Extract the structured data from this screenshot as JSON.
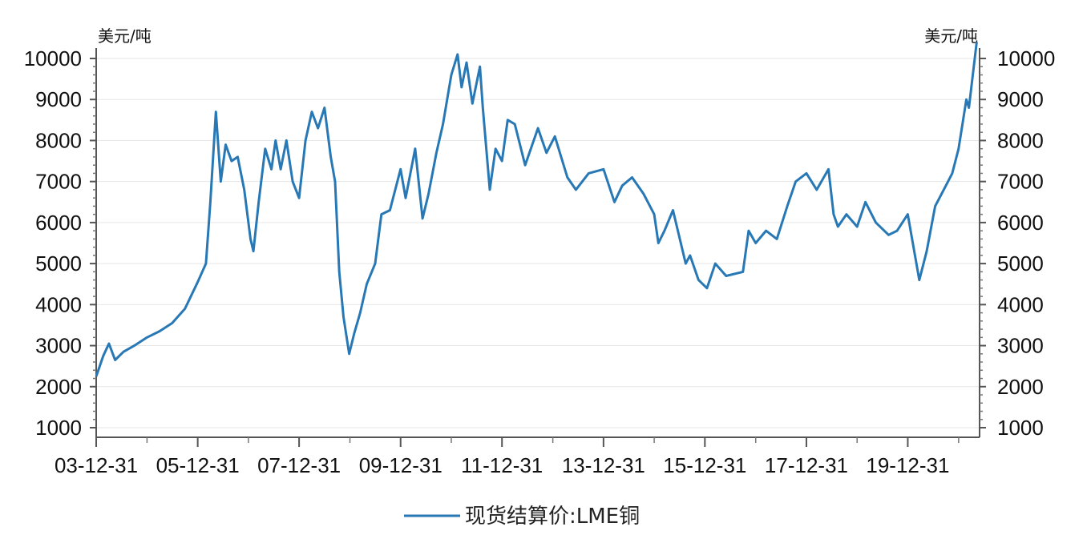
{
  "chart_data": {
    "type": "line",
    "title": "",
    "ylabel_left": "美元/吨",
    "ylabel_right": "美元/吨",
    "ylim": [
      1000,
      10000
    ],
    "yticks": [
      1000,
      2000,
      3000,
      4000,
      5000,
      6000,
      7000,
      8000,
      9000,
      10000
    ],
    "ytick_labels": [
      "1000",
      "2000",
      "3000",
      "4000",
      "5000",
      "6000",
      "7000",
      "8000",
      "9000",
      "10000"
    ],
    "xlim": [
      "2003-12-31",
      "2021-05-31"
    ],
    "xticks": [
      "2003-12-31",
      "2005-12-31",
      "2007-12-31",
      "2009-12-31",
      "2011-12-31",
      "2013-12-31",
      "2015-12-31",
      "2017-12-31",
      "2019-12-31"
    ],
    "xtick_labels": [
      "03-12-31",
      "05-12-31",
      "07-12-31",
      "09-12-31",
      "11-12-31",
      "13-12-31",
      "15-12-31",
      "17-12-31",
      "19-12-31"
    ],
    "grid": true,
    "legend_position": "bottom",
    "series": [
      {
        "name": "现货结算价:LME铜",
        "color": "#2878b5",
        "points": [
          [
            "2003-12-31",
            2250
          ],
          [
            "2004-02-20",
            2750
          ],
          [
            "2004-04-01",
            3050
          ],
          [
            "2004-05-15",
            2650
          ],
          [
            "2004-07-15",
            2850
          ],
          [
            "2004-09-30",
            3000
          ],
          [
            "2004-12-31",
            3200
          ],
          [
            "2005-03-31",
            3350
          ],
          [
            "2005-06-30",
            3550
          ],
          [
            "2005-09-30",
            3900
          ],
          [
            "2005-12-31",
            4550
          ],
          [
            "2006-02-28",
            5000
          ],
          [
            "2006-04-01",
            6500
          ],
          [
            "2006-05-11",
            8700
          ],
          [
            "2006-06-15",
            7000
          ],
          [
            "2006-07-20",
            7900
          ],
          [
            "2006-09-01",
            7500
          ],
          [
            "2006-10-15",
            7600
          ],
          [
            "2006-12-01",
            6800
          ],
          [
            "2007-01-15",
            5600
          ],
          [
            "2007-02-05",
            5300
          ],
          [
            "2007-03-15",
            6500
          ],
          [
            "2007-05-01",
            7800
          ],
          [
            "2007-06-15",
            7300
          ],
          [
            "2007-07-15",
            8000
          ],
          [
            "2007-08-20",
            7300
          ],
          [
            "2007-10-01",
            8000
          ],
          [
            "2007-11-15",
            7000
          ],
          [
            "2007-12-31",
            6600
          ],
          [
            "2008-02-15",
            8000
          ],
          [
            "2008-04-01",
            8700
          ],
          [
            "2008-05-15",
            8300
          ],
          [
            "2008-07-01",
            8800
          ],
          [
            "2008-08-15",
            7600
          ],
          [
            "2008-09-15",
            7000
          ],
          [
            "2008-10-15",
            4800
          ],
          [
            "2008-11-15",
            3700
          ],
          [
            "2008-12-26",
            2800
          ],
          [
            "2009-01-31",
            3300
          ],
          [
            "2009-03-15",
            3800
          ],
          [
            "2009-05-01",
            4500
          ],
          [
            "2009-07-01",
            5000
          ],
          [
            "2009-08-15",
            6200
          ],
          [
            "2009-10-15",
            6300
          ],
          [
            "2009-12-31",
            7300
          ],
          [
            "2010-02-05",
            6600
          ],
          [
            "2010-04-15",
            7800
          ],
          [
            "2010-06-07",
            6100
          ],
          [
            "2010-07-20",
            6700
          ],
          [
            "2010-09-15",
            7700
          ],
          [
            "2010-11-01",
            8400
          ],
          [
            "2010-12-31",
            9600
          ],
          [
            "2011-02-14",
            10100
          ],
          [
            "2011-03-15",
            9300
          ],
          [
            "2011-04-20",
            9900
          ],
          [
            "2011-06-01",
            8900
          ],
          [
            "2011-07-25",
            9800
          ],
          [
            "2011-08-15",
            8800
          ],
          [
            "2011-10-04",
            6800
          ],
          [
            "2011-11-15",
            7800
          ],
          [
            "2011-12-31",
            7500
          ],
          [
            "2012-02-10",
            8500
          ],
          [
            "2012-04-01",
            8400
          ],
          [
            "2012-06-15",
            7400
          ],
          [
            "2012-09-15",
            8300
          ],
          [
            "2012-11-15",
            7700
          ],
          [
            "2013-01-15",
            8100
          ],
          [
            "2013-04-15",
            7100
          ],
          [
            "2013-06-15",
            6800
          ],
          [
            "2013-09-15",
            7200
          ],
          [
            "2013-12-31",
            7300
          ],
          [
            "2014-03-20",
            6500
          ],
          [
            "2014-05-15",
            6900
          ],
          [
            "2014-07-25",
            7100
          ],
          [
            "2014-10-15",
            6700
          ],
          [
            "2014-12-31",
            6200
          ],
          [
            "2015-01-30",
            5500
          ],
          [
            "2015-03-15",
            5800
          ],
          [
            "2015-05-15",
            6300
          ],
          [
            "2015-08-15",
            5000
          ],
          [
            "2015-09-15",
            5200
          ],
          [
            "2015-11-15",
            4600
          ],
          [
            "2016-01-15",
            4400
          ],
          [
            "2016-03-15",
            5000
          ],
          [
            "2016-06-01",
            4700
          ],
          [
            "2016-09-30",
            4800
          ],
          [
            "2016-11-10",
            5800
          ],
          [
            "2016-12-31",
            5500
          ],
          [
            "2017-03-15",
            5800
          ],
          [
            "2017-06-01",
            5600
          ],
          [
            "2017-08-15",
            6400
          ],
          [
            "2017-10-15",
            7000
          ],
          [
            "2017-12-31",
            7200
          ],
          [
            "2018-03-15",
            6800
          ],
          [
            "2018-06-08",
            7300
          ],
          [
            "2018-07-15",
            6200
          ],
          [
            "2018-08-15",
            5900
          ],
          [
            "2018-10-15",
            6200
          ],
          [
            "2018-12-31",
            5900
          ],
          [
            "2019-03-01",
            6500
          ],
          [
            "2019-05-15",
            6000
          ],
          [
            "2019-08-15",
            5700
          ],
          [
            "2019-10-15",
            5800
          ],
          [
            "2019-12-31",
            6200
          ],
          [
            "2020-03-23",
            4600
          ],
          [
            "2020-05-15",
            5300
          ],
          [
            "2020-07-15",
            6400
          ],
          [
            "2020-09-15",
            6800
          ],
          [
            "2020-11-15",
            7200
          ],
          [
            "2020-12-31",
            7800
          ],
          [
            "2021-02-25",
            9000
          ],
          [
            "2021-03-15",
            8800
          ],
          [
            "2021-05-10",
            10400
          ]
        ]
      }
    ]
  }
}
